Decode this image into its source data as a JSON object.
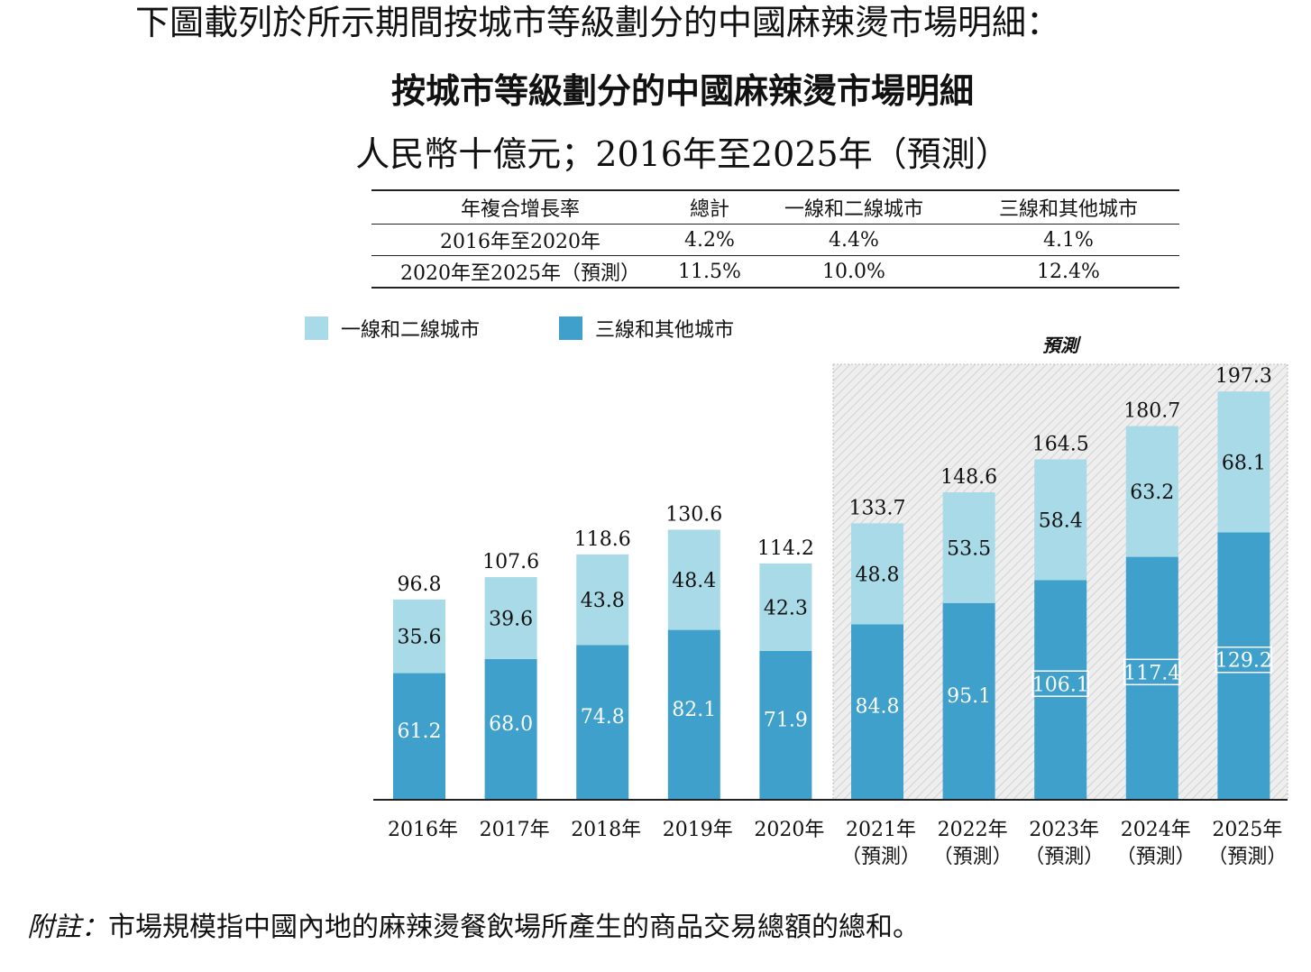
{
  "intro_text": "下圖載列於所示期間按城市等級劃分的中國麻辣燙市場明細：",
  "chart_title": "按城市等級劃分的中國麻辣燙市場明細",
  "chart_subtitle": "人民幣十億元；2016年至2025年（預測）",
  "cagr_table": {
    "headers": [
      "年複合增長率",
      "總計",
      "一線和二線城市",
      "三線和其他城市"
    ],
    "rows": [
      [
        "2016年至2020年",
        "4.2%",
        "4.4%",
        "4.1%"
      ],
      [
        "2020年至2025年（預測）",
        "11.5%",
        "10.0%",
        "12.4%"
      ]
    ]
  },
  "forecast_label": "預測",
  "footnote": {
    "label": "附註：",
    "text": "市場規模指中國內地的麻辣燙餐飲場所產生的商品交易總額的總和。"
  },
  "colors": {
    "tier12": "#a8dbe7",
    "tier3plus": "#3fa0cc",
    "forecast_bg": "#e6e6e6"
  },
  "chart_data": {
    "type": "bar",
    "stacked": true,
    "unit": "人民幣十億元",
    "categories": [
      "2016年",
      "2017年",
      "2018年",
      "2019年",
      "2020年",
      "2021年",
      "2022年",
      "2023年",
      "2024年",
      "2025年"
    ],
    "category_sublabels": [
      "",
      "",
      "",
      "",
      "",
      "（預測）",
      "（預測）",
      "（預測）",
      "（預測）",
      "（預測）"
    ],
    "forecast_start_index": 5,
    "series": [
      {
        "name": "三線和其他城市",
        "values": [
          61.2,
          68.0,
          74.8,
          82.1,
          71.9,
          84.8,
          95.1,
          106.1,
          117.4,
          129.2
        ]
      },
      {
        "name": "一線和二線城市",
        "values": [
          35.6,
          39.6,
          43.8,
          48.4,
          42.3,
          48.8,
          53.5,
          58.4,
          63.2,
          68.1
        ]
      }
    ],
    "totals": [
      96.8,
      107.6,
      118.6,
      130.6,
      114.2,
      133.7,
      148.6,
      164.5,
      180.7,
      197.3
    ],
    "value_labels": {
      "三線和其他城市": [
        "61.2",
        "68.0",
        "74.8",
        "82.1",
        "71.9",
        "84.8",
        "95.1",
        "106.1",
        "117.4",
        "129.2"
      ],
      "一線和二線城市": [
        "35.6",
        "39.6",
        "43.8",
        "48.4",
        "42.3",
        "48.8",
        "53.5",
        "58.4",
        "63.2",
        "68.1"
      ],
      "totals": [
        "96.8",
        "107.6",
        "118.6",
        "130.6",
        "114.2",
        "133.7",
        "148.6",
        "164.5",
        "180.7",
        "197.3"
      ]
    },
    "legend": [
      "一線和二線城市",
      "三線和其他城市"
    ],
    "legend_position": "top-left",
    "grid": false
  }
}
